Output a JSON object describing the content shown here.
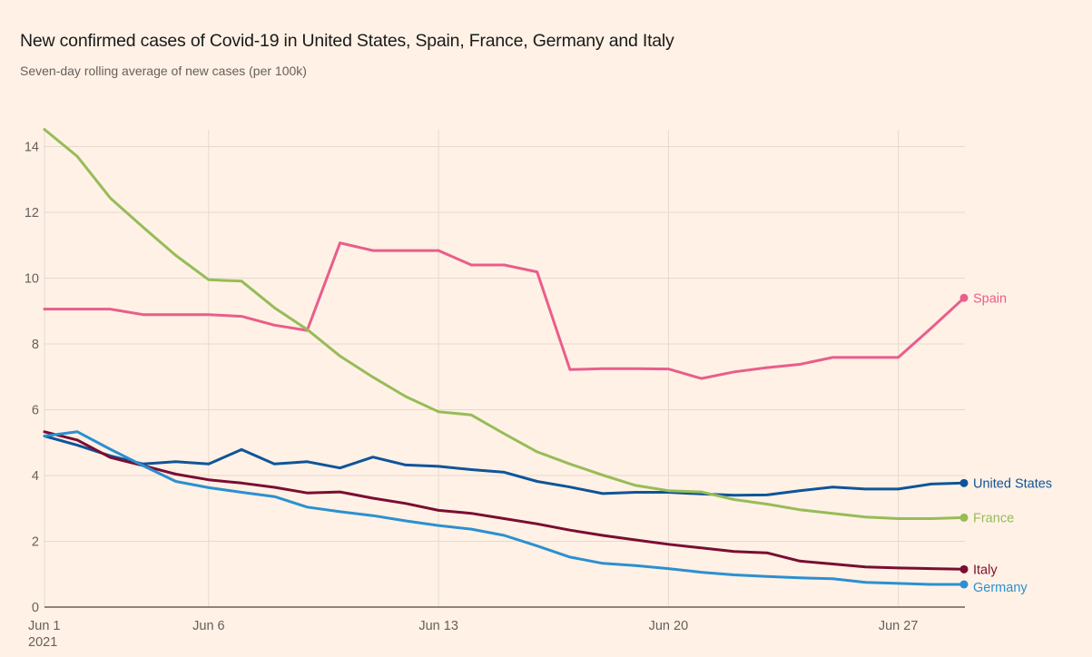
{
  "header": {
    "title": "New confirmed cases of Covid-19 in United States, Spain, France, Germany and Italy",
    "subtitle": "Seven-day rolling average of new cases (per 100k)"
  },
  "chart_data": {
    "type": "line",
    "title": "New confirmed cases of Covid-19 in United States, Spain, France, Germany and Italy",
    "subtitle": "Seven-day rolling average of new cases (per 100k)",
    "xlabel": "",
    "ylabel": "",
    "x": [
      "Jun 1",
      "Jun 2",
      "Jun 3",
      "Jun 4",
      "Jun 5",
      "Jun 6",
      "Jun 7",
      "Jun 8",
      "Jun 9",
      "Jun 10",
      "Jun 11",
      "Jun 12",
      "Jun 13",
      "Jun 14",
      "Jun 15",
      "Jun 16",
      "Jun 17",
      "Jun 18",
      "Jun 19",
      "Jun 20",
      "Jun 21",
      "Jun 22",
      "Jun 23",
      "Jun 24",
      "Jun 25",
      "Jun 26",
      "Jun 27",
      "Jun 28",
      "Jun 29"
    ],
    "x_ticks": [
      {
        "index": 0,
        "label": "Jun 1",
        "sublabel": "2021"
      },
      {
        "index": 5,
        "label": "Jun 6"
      },
      {
        "index": 12,
        "label": "Jun 13"
      },
      {
        "index": 19,
        "label": "Jun 20"
      },
      {
        "index": 26,
        "label": "Jun 27"
      }
    ],
    "y_ticks": [
      0,
      2,
      4,
      6,
      8,
      10,
      12,
      14
    ],
    "ylim": [
      0,
      14.6
    ],
    "grid": true,
    "legend": "end-of-line labels (right)",
    "series": [
      {
        "name": "Spain",
        "color": "#e95d8c",
        "values": [
          9.06,
          9.06,
          9.06,
          8.89,
          8.89,
          8.89,
          8.84,
          8.57,
          8.41,
          11.07,
          10.84,
          10.84,
          10.84,
          10.4,
          10.4,
          10.19,
          7.22,
          7.25,
          7.25,
          7.24,
          6.95,
          7.15,
          7.28,
          7.38,
          7.59,
          7.59,
          7.59,
          8.48,
          9.4
        ]
      },
      {
        "name": "United States",
        "color": "#0f5499",
        "values": [
          5.2,
          4.92,
          4.6,
          4.35,
          4.42,
          4.35,
          4.79,
          4.35,
          4.42,
          4.23,
          4.56,
          4.32,
          4.28,
          4.18,
          4.1,
          3.82,
          3.65,
          3.45,
          3.49,
          3.49,
          3.44,
          3.4,
          3.41,
          3.54,
          3.65,
          3.59,
          3.59,
          3.74,
          3.77
        ]
      },
      {
        "name": "France",
        "color": "#96bc58",
        "values": [
          14.52,
          13.7,
          12.44,
          11.55,
          10.69,
          9.95,
          9.91,
          9.1,
          8.44,
          7.63,
          6.99,
          6.4,
          5.94,
          5.84,
          5.27,
          4.72,
          4.35,
          4.01,
          3.7,
          3.54,
          3.5,
          3.27,
          3.13,
          2.96,
          2.85,
          2.74,
          2.69,
          2.69,
          2.72
        ]
      },
      {
        "name": "Italy",
        "color": "#7a0d32",
        "values": [
          5.33,
          5.08,
          4.55,
          4.3,
          4.04,
          3.87,
          3.77,
          3.64,
          3.47,
          3.5,
          3.31,
          3.15,
          2.94,
          2.85,
          2.69,
          2.53,
          2.34,
          2.18,
          2.04,
          1.91,
          1.8,
          1.69,
          1.65,
          1.4,
          1.31,
          1.22,
          1.19,
          1.17,
          1.15
        ]
      },
      {
        "name": "Germany",
        "color": "#2b90d0",
        "values": [
          5.2,
          5.33,
          4.8,
          4.3,
          3.82,
          3.63,
          3.49,
          3.36,
          3.04,
          2.9,
          2.78,
          2.62,
          2.48,
          2.37,
          2.18,
          1.86,
          1.52,
          1.33,
          1.26,
          1.17,
          1.06,
          0.98,
          0.93,
          0.89,
          0.86,
          0.75,
          0.72,
          0.69,
          0.69
        ]
      }
    ]
  }
}
